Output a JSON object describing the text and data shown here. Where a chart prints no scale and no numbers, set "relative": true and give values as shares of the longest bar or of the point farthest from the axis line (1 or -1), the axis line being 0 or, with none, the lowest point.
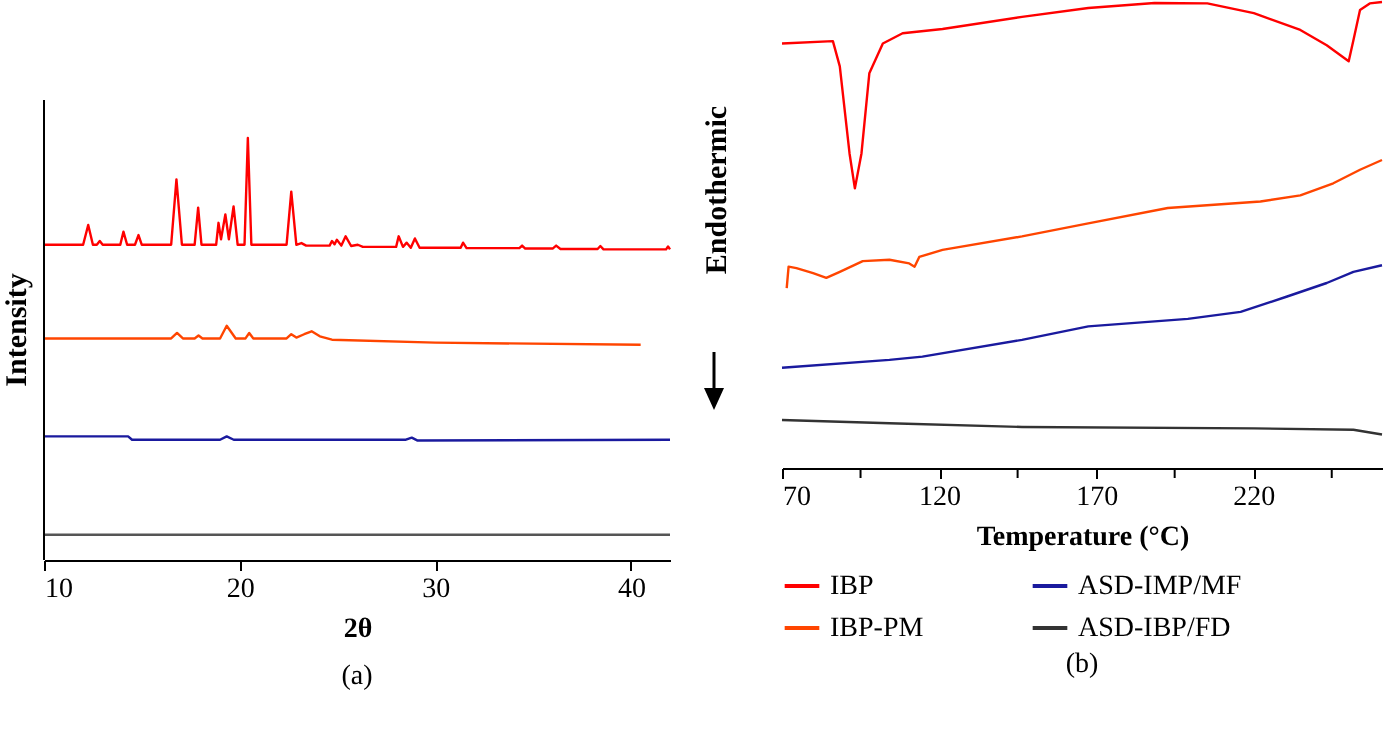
{
  "chart_data": [
    {
      "type": "line",
      "relative": true,
      "xlabel": "2θ",
      "ylabel": "Intensity",
      "xlim": [
        10,
        42
      ],
      "xticks": [
        10,
        20,
        30,
        40
      ],
      "tick_labels": "x",
      "annotations": [
        "(a)"
      ],
      "series": [
        {
          "color": "#ff0000",
          "x": [
            10,
            12.0,
            12.26,
            12.5,
            12.7,
            12.85,
            13.0,
            13.9,
            14.06,
            14.25,
            14.65,
            14.83,
            15.0,
            16.5,
            16.77,
            17.05,
            17.7,
            17.88,
            18.05,
            18.8,
            18.92,
            19.05,
            19.27,
            19.45,
            19.69,
            19.9,
            20.25,
            20.42,
            20.6,
            22.4,
            22.64,
            22.9,
            23.16,
            23.4,
            24.6,
            24.72,
            24.85,
            24.97,
            25.2,
            25.42,
            25.7,
            26.04,
            26.3,
            28.0,
            28.13,
            28.35,
            28.54,
            28.75,
            28.96,
            29.2,
            31.3,
            31.42,
            31.6,
            34.3,
            34.44,
            34.6,
            36.0,
            36.18,
            36.4,
            38.3,
            38.44,
            38.6,
            41.8,
            41.9,
            42
          ],
          "values": [
            0.747,
            0.747,
            0.794,
            0.747,
            0.747,
            0.756,
            0.747,
            0.747,
            0.778,
            0.747,
            0.747,
            0.77,
            0.747,
            0.747,
            0.902,
            0.747,
            0.747,
            0.835,
            0.747,
            0.747,
            0.799,
            0.76,
            0.819,
            0.76,
            0.838,
            0.747,
            0.747,
            1.0,
            0.747,
            0.747,
            0.873,
            0.747,
            0.751,
            0.745,
            0.745,
            0.756,
            0.748,
            0.759,
            0.745,
            0.767,
            0.744,
            0.747,
            0.742,
            0.742,
            0.767,
            0.742,
            0.752,
            0.74,
            0.762,
            0.74,
            0.74,
            0.752,
            0.739,
            0.739,
            0.745,
            0.738,
            0.738,
            0.745,
            0.737,
            0.737,
            0.744,
            0.736,
            0.736,
            0.743,
            0.736
          ]
        },
        {
          "color": "#ff4500",
          "x": [
            10,
            16.5,
            16.8,
            17.1,
            17.7,
            17.9,
            18.1,
            19.0,
            19.34,
            19.8,
            20.3,
            20.49,
            20.7,
            22.4,
            22.64,
            22.9,
            23.3,
            23.68,
            24.1,
            24.72,
            30,
            40.5
          ],
          "values": [
            0.525,
            0.525,
            0.538,
            0.525,
            0.525,
            0.532,
            0.525,
            0.525,
            0.555,
            0.525,
            0.525,
            0.538,
            0.525,
            0.525,
            0.535,
            0.527,
            0.535,
            0.542,
            0.53,
            0.522,
            0.515,
            0.51
          ]
        },
        {
          "color": "#1a1a9e",
          "x": [
            10,
            14.3,
            14.5,
            19.0,
            19.34,
            19.7,
            28.5,
            28.8,
            29.1,
            42
          ],
          "values": [
            0.293,
            0.293,
            0.285,
            0.285,
            0.293,
            0.285,
            0.285,
            0.29,
            0.283,
            0.285
          ]
        },
        {
          "color": "#555555",
          "x": [
            10,
            26,
            42
          ],
          "values": [
            0.06,
            0.06,
            0.06
          ]
        }
      ]
    },
    {
      "type": "line",
      "relative": true,
      "xlabel": "Temperature (°C)",
      "ylabel": "Endothermic",
      "xlim": [
        70,
        261
      ],
      "xticks": [
        70,
        {
          "value": 95,
          "label": null
        },
        120,
        {
          "value": 145,
          "label": null
        },
        170,
        {
          "value": 195,
          "label": null
        },
        220,
        {
          "value": 245,
          "label": null
        }
      ],
      "tick_labels": "x",
      "legend": "bottom",
      "annotations": [
        "(b)"
      ],
      "series": [
        {
          "name": "IBP",
          "color": "#ff0000",
          "x": [
            70,
            86.2,
            88.4,
            91.5,
            93.2,
            95.3,
            97.8,
            102.1,
            108.4,
            121.1,
            146.4,
            167.5,
            188.6,
            205.4,
            220.2,
            235,
            243.4,
            250.4,
            251.9,
            254,
            257.1,
            261
          ],
          "values": [
            0.911,
            0.916,
            0.862,
            0.675,
            0.6,
            0.675,
            0.847,
            0.911,
            0.933,
            0.942,
            0.968,
            0.987,
            0.998,
            0.997,
            0.976,
            0.94,
            0.907,
            0.873,
            0.918,
            0.983,
            0.997,
            1.0
          ]
        },
        {
          "name": "IBP-PM",
          "color": "#ff4500",
          "x": [
            71.5,
            72.1,
            74.6,
            79.9,
            84.1,
            88.4,
            95.7,
            104.2,
            110.5,
            112.2,
            113.7,
            121.1,
            146.4,
            167.5,
            192.8,
            222.3,
            235,
            245.5,
            254,
            261
          ],
          "values": [
            0.386,
            0.432,
            0.429,
            0.418,
            0.408,
            0.421,
            0.444,
            0.447,
            0.439,
            0.432,
            0.453,
            0.468,
            0.497,
            0.525,
            0.558,
            0.572,
            0.585,
            0.611,
            0.64,
            0.661
          ]
        },
        {
          "name": "ASD-IMP/MF",
          "color": "#1a1a9e",
          "x": [
            70,
            104.2,
            114.7,
            146.4,
            167.5,
            199.2,
            216,
            230.8,
            243.4,
            251.9,
            261
          ],
          "values": [
            0.215,
            0.232,
            0.239,
            0.275,
            0.304,
            0.32,
            0.335,
            0.368,
            0.397,
            0.421,
            0.435
          ]
        },
        {
          "name": "ASD-IBP/FD",
          "color": "#333333",
          "x": [
            70,
            104.2,
            146.4,
            220.2,
            251.9,
            261
          ],
          "values": [
            0.103,
            0.096,
            0.088,
            0.085,
            0.082,
            0.072
          ]
        }
      ]
    }
  ]
}
